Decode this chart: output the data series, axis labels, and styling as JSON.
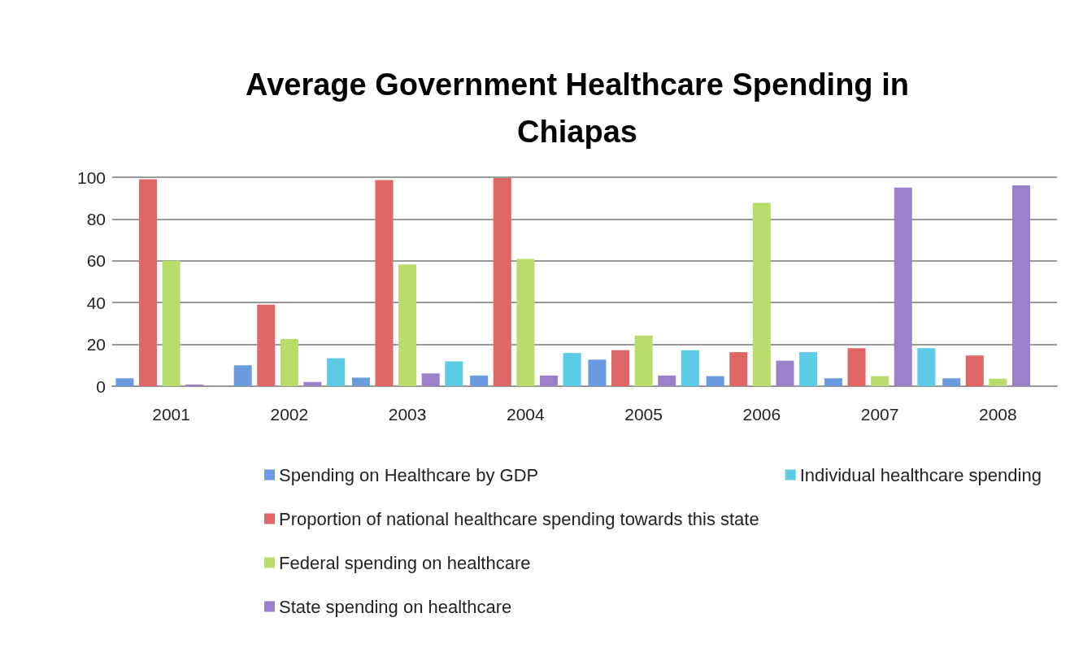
{
  "chart_data": {
    "type": "bar",
    "title": "Average Government Healthcare Spending in\nChiapas",
    "categories": [
      "2001",
      "2002",
      "2003",
      "2004",
      "2005",
      "2006",
      "2007",
      "2008"
    ],
    "series": [
      {
        "name": "Spending on Healthcare by GDP",
        "color": "#6a9be0",
        "values": [
          3.8,
          10,
          4.1,
          5.1,
          12.7,
          4.8,
          3.8,
          3.8
        ]
      },
      {
        "name": "Proportion of national healthcare spending towards this state",
        "color": "#e06666",
        "values": [
          99,
          39,
          98.6,
          99.6,
          17.2,
          16.3,
          18.2,
          14.7
        ]
      },
      {
        "name": "Federal spending on healthcare",
        "color": "#b8dc6a",
        "values": [
          60,
          22.6,
          58.3,
          60.9,
          24.2,
          87.7,
          4.8,
          3.6
        ]
      },
      {
        "name": "State spending on healthcare",
        "color": "#9b7fc8",
        "values": [
          0.8,
          2,
          6.1,
          5.1,
          5.1,
          12.2,
          95,
          96.1
        ]
      },
      {
        "name": "Individual healthcare spending",
        "color": "#5ccbe6",
        "values": [
          null,
          13.4,
          11.9,
          15.9,
          17.2,
          16.3,
          18.2,
          null
        ]
      }
    ],
    "ylim": [
      0,
      100
    ],
    "yticks": [
      0,
      20,
      40,
      60,
      80,
      100
    ],
    "grid": "y",
    "legend": "bottom"
  }
}
